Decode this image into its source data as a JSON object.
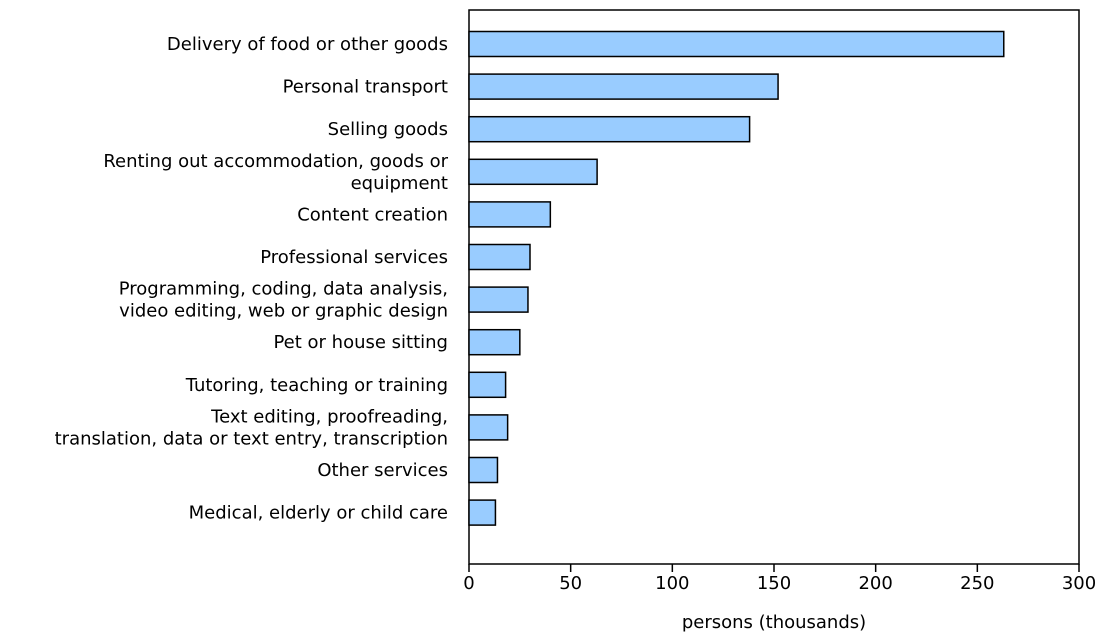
{
  "chart_data": {
    "type": "bar",
    "orientation": "horizontal",
    "categories": [
      [
        "Delivery of food or other goods"
      ],
      [
        "Personal transport"
      ],
      [
        "Selling goods"
      ],
      [
        "Renting out accommodation, goods or",
        "equipment"
      ],
      [
        "Content creation"
      ],
      [
        "Professional services"
      ],
      [
        "Programming, coding, data analysis,",
        "video editing, web or graphic design"
      ],
      [
        "Pet or house sitting"
      ],
      [
        "Tutoring, teaching or training"
      ],
      [
        "Text editing, proofreading,",
        "translation, data or text entry, transcription"
      ],
      [
        "Other services"
      ],
      [
        "Medical, elderly or child care"
      ]
    ],
    "values": [
      263,
      152,
      138,
      63,
      40,
      30,
      29,
      25,
      18,
      19,
      14,
      13
    ],
    "xlabel": "persons (thousands)",
    "ylabel": "",
    "title": "",
    "xlim": [
      0,
      300
    ],
    "xticks": [
      0,
      50,
      100,
      150,
      200,
      250,
      300
    ],
    "grid": false,
    "bar_color": "#99ccff",
    "bar_edge_color": "#000000"
  }
}
